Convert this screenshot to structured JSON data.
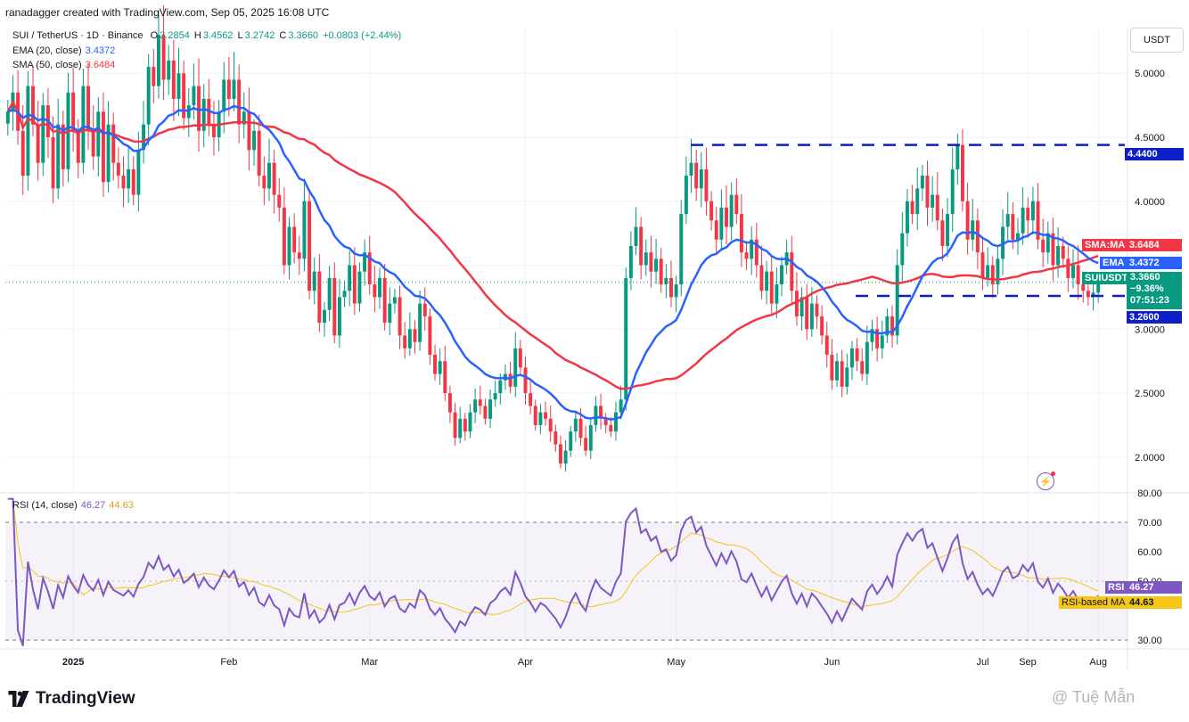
{
  "header": {
    "attribution": "ranadagger created with TradingView.com, Sep 05, 2025 16:08 UTC"
  },
  "legend": {
    "symbol": "SUI / TetherUS · 1D · Binance",
    "o_label": "O",
    "o": "3.2854",
    "h_label": "H",
    "h": "3.4562",
    "l_label": "L",
    "l": "3.2742",
    "c_label": "C",
    "c": "3.3660",
    "change": "+0.0803 (+2.44%)",
    "ema_label": "EMA (20, close)",
    "ema_value": "3.4372",
    "sma_label": "SMA (50, close)",
    "sma_value": "3.6484",
    "rsi_label": "RSI (14, close)",
    "rsi_value": "46.27",
    "rsi_ma_value": "44.63"
  },
  "currency_button": "USDT",
  "price_axis": {
    "ticks": [
      "5.0000",
      "4.5000",
      "4.0000",
      "3.5000",
      "3.0000",
      "2.5000",
      "2.0000"
    ]
  },
  "rsi_axis": {
    "ticks": [
      "80.00",
      "70.00",
      "60.00",
      "50.00",
      "30.00"
    ]
  },
  "time_axis": {
    "labels": [
      "2025",
      "Feb",
      "Mar",
      "Apr",
      "May",
      "Jun",
      "Jul",
      "Aug",
      "Sep"
    ]
  },
  "price_tags": {
    "resistance": "4.4400",
    "sma_name": "SMA:MA",
    "sma": "3.6484",
    "ema_name": "EMA",
    "ema": "3.4372",
    "symbol_name": "SUIUSDT",
    "last": "3.3660",
    "last_change": "−9.36%",
    "countdown": "07:51:23",
    "support": "3.2600",
    "rsi_name": "RSI",
    "rsi": "46.27",
    "rsi_ma_name": "RSI-based MA",
    "rsi_ma": "44.63"
  },
  "colors": {
    "up": "#089981",
    "down": "#f23645",
    "ema": "#2962ff",
    "sma": "#f23645",
    "level": "#0c1fc8",
    "rsi": "#7e57c2",
    "rsi_ma": "#f5c518"
  },
  "branding": {
    "logo_text": "TradingView",
    "watermark": "@ Tuệ Mẫn"
  },
  "chart_data": {
    "type": "candlestick",
    "title": "SUI / TetherUS · 1D · Binance",
    "ylim": [
      1.72,
      5.35
    ],
    "levels": [
      4.44,
      3.26
    ],
    "x_months": [
      "2025",
      "Feb",
      "Mar",
      "Apr",
      "May",
      "Jun",
      "Jul",
      "Aug",
      "Sep"
    ],
    "closes": [
      4.7,
      4.85,
      4.55,
      4.2,
      4.9,
      4.6,
      4.3,
      4.75,
      4.5,
      4.1,
      4.6,
      4.25,
      4.85,
      4.55,
      4.3,
      4.9,
      4.55,
      4.35,
      4.7,
      4.15,
      4.6,
      4.3,
      4.2,
      4.1,
      4.25,
      4.05,
      4.4,
      4.6,
      5.05,
      4.9,
      5.3,
      4.95,
      5.1,
      4.8,
      5.0,
      4.65,
      4.75,
      4.9,
      4.55,
      4.8,
      4.6,
      4.5,
      4.7,
      4.95,
      4.8,
      4.95,
      4.6,
      4.7,
      4.4,
      4.55,
      4.2,
      4.1,
      4.3,
      4.05,
      3.95,
      3.5,
      3.8,
      3.6,
      3.55,
      4.0,
      3.3,
      3.45,
      3.05,
      3.15,
      3.4,
      2.95,
      3.25,
      3.3,
      3.5,
      3.2,
      3.45,
      3.6,
      3.35,
      3.25,
      3.4,
      3.05,
      3.2,
      3.25,
      2.95,
      2.85,
      3.0,
      2.9,
      3.2,
      3.1,
      2.8,
      2.65,
      2.75,
      2.5,
      2.35,
      2.15,
      2.3,
      2.2,
      2.35,
      2.45,
      2.4,
      2.3,
      2.45,
      2.5,
      2.6,
      2.65,
      2.55,
      2.85,
      2.7,
      2.5,
      2.4,
      2.25,
      2.35,
      2.3,
      2.2,
      2.1,
      1.95,
      2.05,
      2.2,
      2.3,
      2.15,
      2.05,
      2.25,
      2.4,
      2.3,
      2.25,
      2.2,
      2.35,
      2.45,
      3.4,
      3.65,
      3.8,
      3.5,
      3.6,
      3.45,
      3.55,
      3.35,
      3.4,
      3.25,
      3.35,
      3.9,
      4.2,
      4.3,
      4.1,
      4.25,
      4.0,
      3.85,
      3.7,
      3.95,
      3.8,
      4.05,
      3.9,
      3.6,
      3.55,
      3.7,
      3.5,
      3.3,
      3.45,
      3.2,
      3.35,
      3.5,
      3.6,
      3.3,
      3.1,
      3.25,
      3.0,
      3.2,
      3.1,
      2.95,
      2.8,
      2.6,
      2.75,
      2.55,
      2.7,
      2.85,
      2.75,
      2.65,
      2.9,
      3.0,
      2.85,
      2.95,
      3.1,
      2.95,
      3.5,
      3.75,
      4.0,
      3.9,
      4.1,
      4.2,
      3.95,
      4.05,
      3.85,
      3.65,
      3.9,
      4.25,
      4.44,
      4.0,
      3.7,
      3.85,
      3.6,
      3.4,
      3.5,
      3.35,
      3.55,
      3.8,
      3.9,
      3.7,
      3.75,
      3.95,
      3.85,
      4.0,
      3.7,
      3.6,
      3.75,
      3.5,
      3.65,
      3.55,
      3.4,
      3.5,
      3.35,
      3.3,
      3.25,
      3.285,
      3.366
    ],
    "ema20_last": 3.4372,
    "sma50_last": 3.6484,
    "rsi": {
      "period": 14,
      "last": 46.27,
      "ma_last": 44.63,
      "ylim": [
        27,
        80
      ],
      "levels": [
        70,
        30
      ]
    }
  }
}
